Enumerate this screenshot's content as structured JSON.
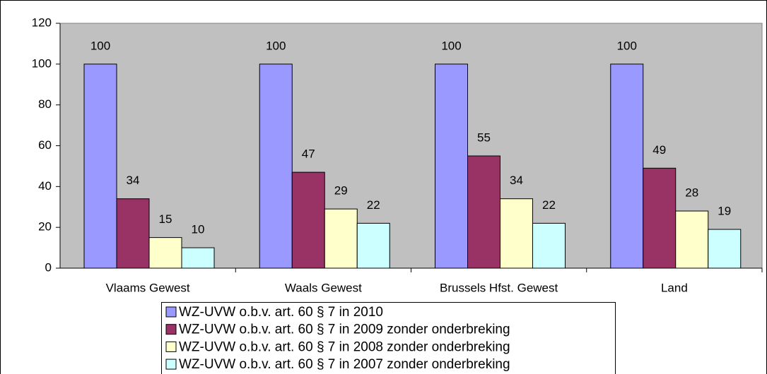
{
  "chart_data": {
    "type": "bar",
    "categories": [
      "Vlaams Gewest",
      "Waals Gewest",
      "Brussels Hfst. Gewest",
      "Land"
    ],
    "series": [
      {
        "name": "WZ-UVW o.b.v. art. 60 § 7 in 2010",
        "color": "#9999ff",
        "values": [
          100,
          100,
          100,
          100
        ]
      },
      {
        "name": "WZ-UVW o.b.v. art. 60 § 7 in 2009 zonder onderbreking",
        "color": "#993366",
        "values": [
          34,
          47,
          55,
          49
        ]
      },
      {
        "name": "WZ-UVW o.b.v. art. 60 § 7 in 2008 zonder onderbreking",
        "color": "#ffffcc",
        "values": [
          15,
          29,
          34,
          28
        ]
      },
      {
        "name": "WZ-UVW o.b.v. art. 60 § 7 in 2007 zonder onderbreking",
        "color": "#ccffff",
        "values": [
          10,
          22,
          22,
          19
        ]
      }
    ],
    "ylim": [
      0,
      120
    ],
    "yticks": [
      0,
      20,
      40,
      60,
      80,
      100,
      120
    ],
    "grid": false,
    "plot_background": "#c0c0c0",
    "legend": "bottom"
  }
}
